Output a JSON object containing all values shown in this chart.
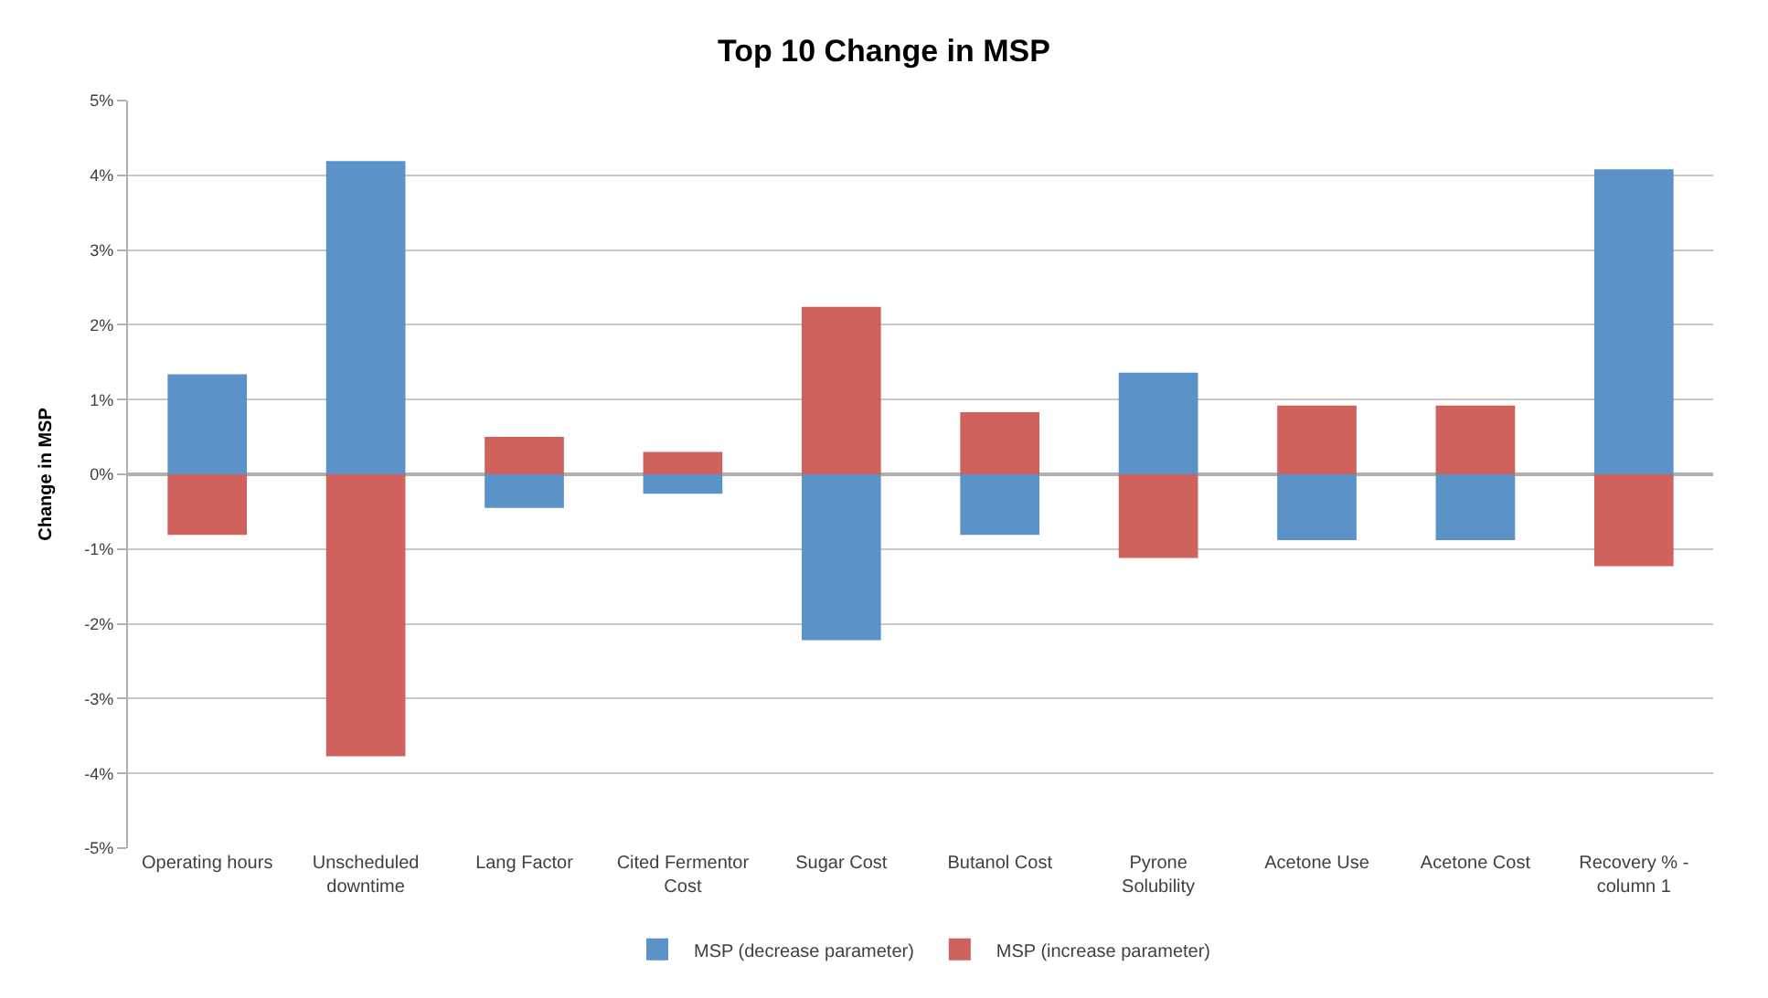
{
  "chart_data": {
    "type": "bar",
    "title": "Top 10 Change in MSP",
    "ylabel": "Change in MSP",
    "categories": [
      "Operating hours",
      "Unscheduled downtime",
      "Lang Factor",
      "Cited Fermentor Cost",
      "Sugar Cost",
      "Butanol Cost",
      "Pyrone Solubility",
      "Acetone Use",
      "Acetone Cost",
      "Recovery % - column 1"
    ],
    "series": [
      {
        "name": "MSP (decrease parameter)",
        "color": "#5b93c9",
        "values": [
          1.34,
          4.19,
          -0.45,
          -0.26,
          -2.22,
          -0.81,
          1.36,
          -0.88,
          -0.88,
          4.08
        ]
      },
      {
        "name": "MSP (increase parameter)",
        "color": "#cf625c",
        "values": [
          -0.81,
          -3.77,
          0.5,
          0.3,
          2.24,
          0.83,
          -1.12,
          0.92,
          0.92,
          -1.23
        ]
      }
    ],
    "ylim": [
      -5,
      5
    ],
    "yticks": [
      {
        "value": -5,
        "label": "-5%"
      },
      {
        "value": -4,
        "label": "-4%"
      },
      {
        "value": -3,
        "label": "-3%"
      },
      {
        "value": -2,
        "label": "-2%"
      },
      {
        "value": -1,
        "label": "-1%"
      },
      {
        "value": 0,
        "label": "0%"
      },
      {
        "value": 1,
        "label": "1%"
      },
      {
        "value": 2,
        "label": "2%"
      },
      {
        "value": 3,
        "label": "3%"
      },
      {
        "value": 4,
        "label": "4%"
      },
      {
        "value": 5,
        "label": "5%"
      }
    ],
    "grid": "y",
    "legend": "bottom",
    "stacked": true
  }
}
